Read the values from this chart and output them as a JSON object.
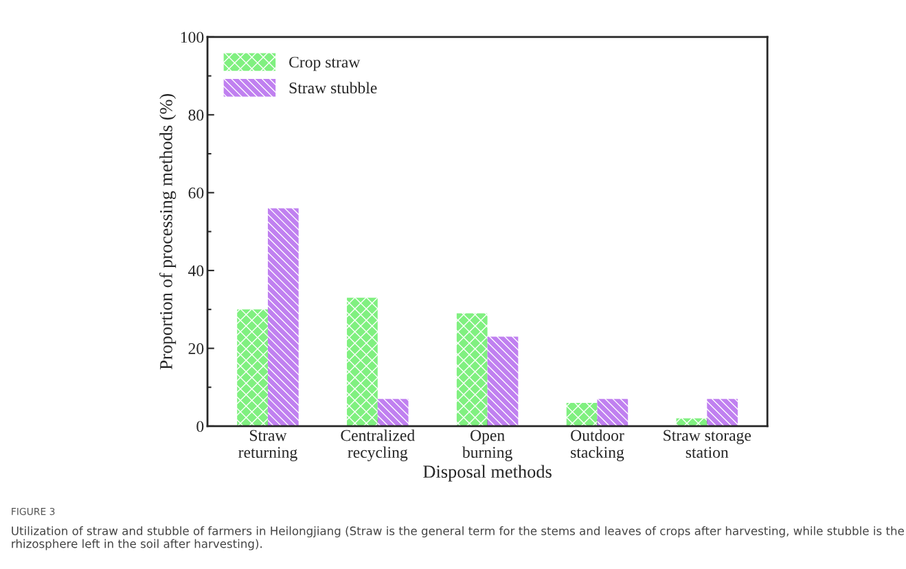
{
  "chart_data": {
    "type": "bar",
    "xlabel": "Disposal methods",
    "ylabel": "Proportion of processing methods (%)",
    "categories": [
      "Straw\nreturning",
      "Centralized\nrecycling",
      "Open\nburning",
      "Outdoor\nstacking",
      "Straw storage\nstation"
    ],
    "series": [
      {
        "name": "Crop straw",
        "color": "#80f080",
        "values": [
          30,
          33,
          29,
          6,
          2
        ]
      },
      {
        "name": "Straw stubble",
        "color": "#c080f0",
        "values": [
          56,
          7,
          23,
          7,
          7
        ]
      }
    ],
    "ylim": [
      0,
      100
    ],
    "yticks": [
      0,
      20,
      40,
      60,
      80,
      100
    ],
    "legend": "top left",
    "grid": false,
    "annotations": [
      "FIGURE 3",
      "Utilization of straw and stubble of farmers in Heilongjiang (Straw is the general term for the stems and leaves of crops after harvesting, while stubble is the rhizosphere left in the soil after harvesting)."
    ]
  }
}
